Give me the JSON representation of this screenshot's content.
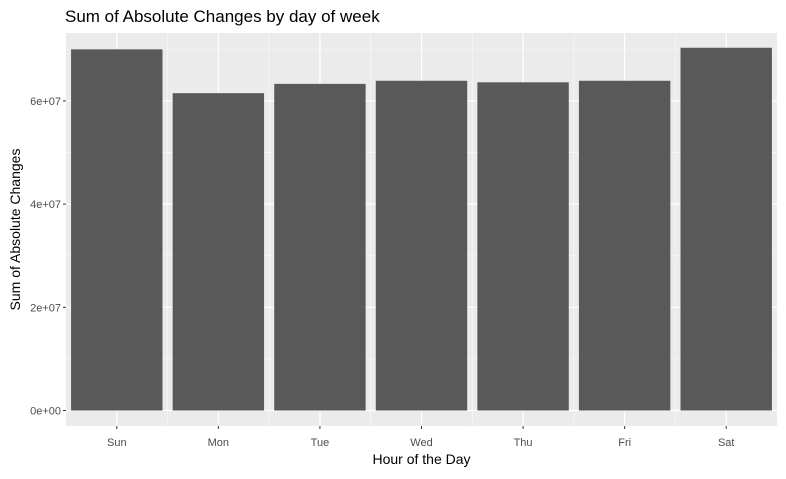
{
  "chart_data": {
    "type": "bar",
    "title": "Sum of Absolute Changes by day of week",
    "xlabel": "Hour of the Day",
    "ylabel": "Sum of Absolute Changes",
    "categories": [
      "Sun",
      "Mon",
      "Tue",
      "Wed",
      "Thu",
      "Fri",
      "Sat"
    ],
    "values": [
      70000000,
      61500000,
      63300000,
      63900000,
      63600000,
      63900000,
      70300000
    ],
    "ylim": [
      0,
      70000000
    ],
    "yticks": [
      {
        "value": 0,
        "label": "0e+00"
      },
      {
        "value": 20000000,
        "label": "2e+07"
      },
      {
        "value": 40000000,
        "label": "4e+07"
      },
      {
        "value": 60000000,
        "label": "6e+07"
      }
    ],
    "grid": true,
    "legend": "none",
    "colors": {
      "panel_background": "#ebebeb",
      "grid_major": "#ffffff",
      "grid_minor": "#f5f5f5",
      "bar_fill": "#595959",
      "axis_text": "#4d4d4d",
      "title_text": "#000000"
    }
  }
}
